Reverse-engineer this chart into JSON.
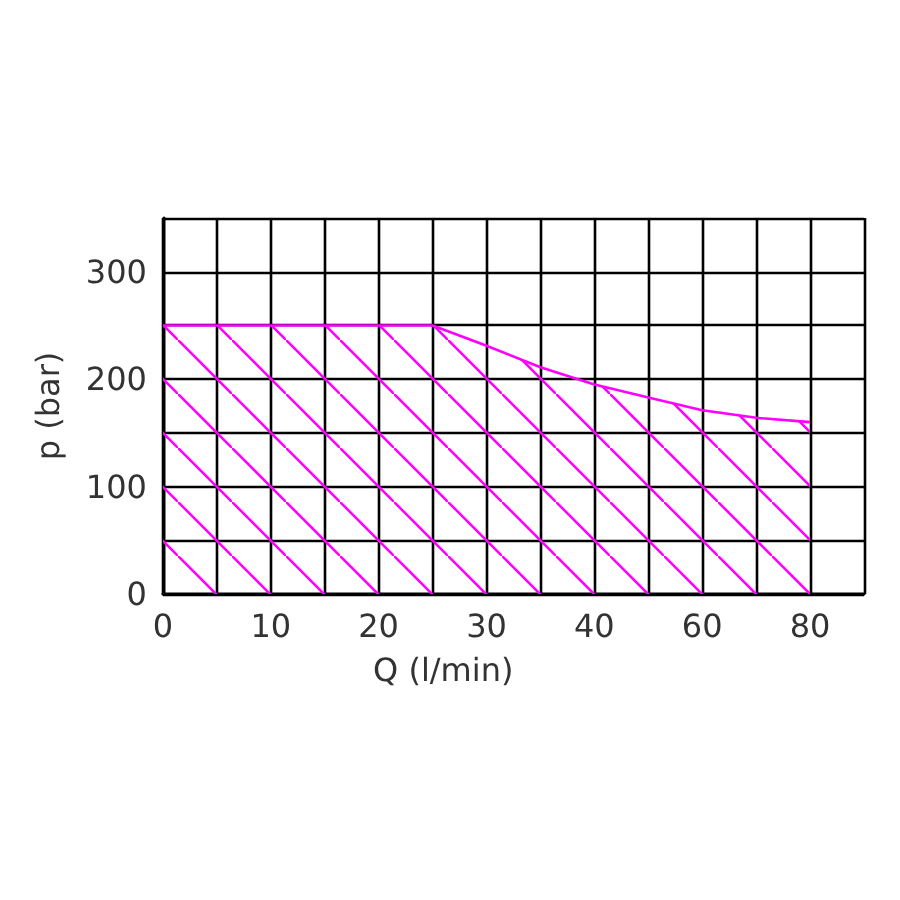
{
  "chart_data": {
    "type": "area",
    "xlabel": "Q (l/min)",
    "ylabel": "p (bar)",
    "categories": [
      "0",
      null,
      "10",
      null,
      "20",
      null,
      "30",
      null,
      "40",
      null,
      "60",
      null,
      "80",
      null
    ],
    "series": [
      {
        "color": "#ff00ff",
        "values": [
          250,
          250,
          250,
          250,
          250,
          250,
          231,
          211,
          195,
          183,
          171,
          164,
          160,
          null
        ]
      }
    ],
    "ylim": [
      0,
      350
    ],
    "yticks": [
      0,
      {
        "value": 50,
        "label": null
      },
      100,
      {
        "value": 150,
        "label": null
      },
      200,
      {
        "value": 250,
        "label": null
      },
      300,
      {
        "value": 350,
        "label": null
      }
    ],
    "grid": true,
    "marker": "none",
    "line_style": "solid"
  }
}
